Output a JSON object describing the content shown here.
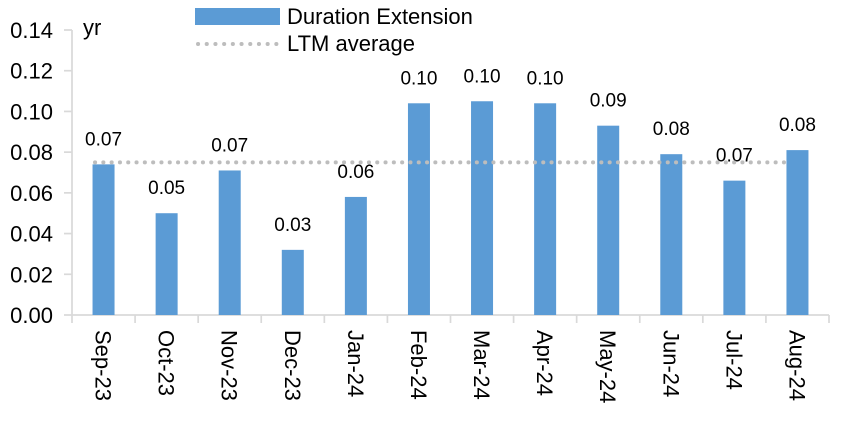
{
  "chart_data": {
    "type": "bar",
    "title": "",
    "unit_label": "yr",
    "categories": [
      "Sep-23",
      "Oct-23",
      "Nov-23",
      "Dec-23",
      "Jan-24",
      "Feb-24",
      "Mar-24",
      "Apr-24",
      "May-24",
      "Jun-24",
      "Jul-24",
      "Aug-24"
    ],
    "series": [
      {
        "name": "Duration Extension",
        "values": [
          0.074,
          0.05,
          0.071,
          0.032,
          0.058,
          0.104,
          0.105,
          0.104,
          0.093,
          0.079,
          0.066,
          0.081
        ],
        "labels": [
          "0.07",
          "0.05",
          "0.07",
          "0.03",
          "0.06",
          "0.10",
          "0.10",
          "0.10",
          "0.09",
          "0.08",
          "0.07",
          "0.08"
        ]
      }
    ],
    "reference_line": {
      "label": "LTM average",
      "value": 0.075,
      "style": "dotted"
    },
    "xlabel": "",
    "ylabel": "yr",
    "ylim": [
      0,
      0.14
    ],
    "y_ticks": [
      "0.00",
      "0.02",
      "0.04",
      "0.06",
      "0.08",
      "0.10",
      "0.12",
      "0.14"
    ],
    "grid": false,
    "legend_position": "top-center",
    "colors": {
      "bar": "#5B9BD5",
      "reference_line": "#BDBDBD",
      "axis": "#D9D9D9",
      "text": "#000000"
    }
  }
}
